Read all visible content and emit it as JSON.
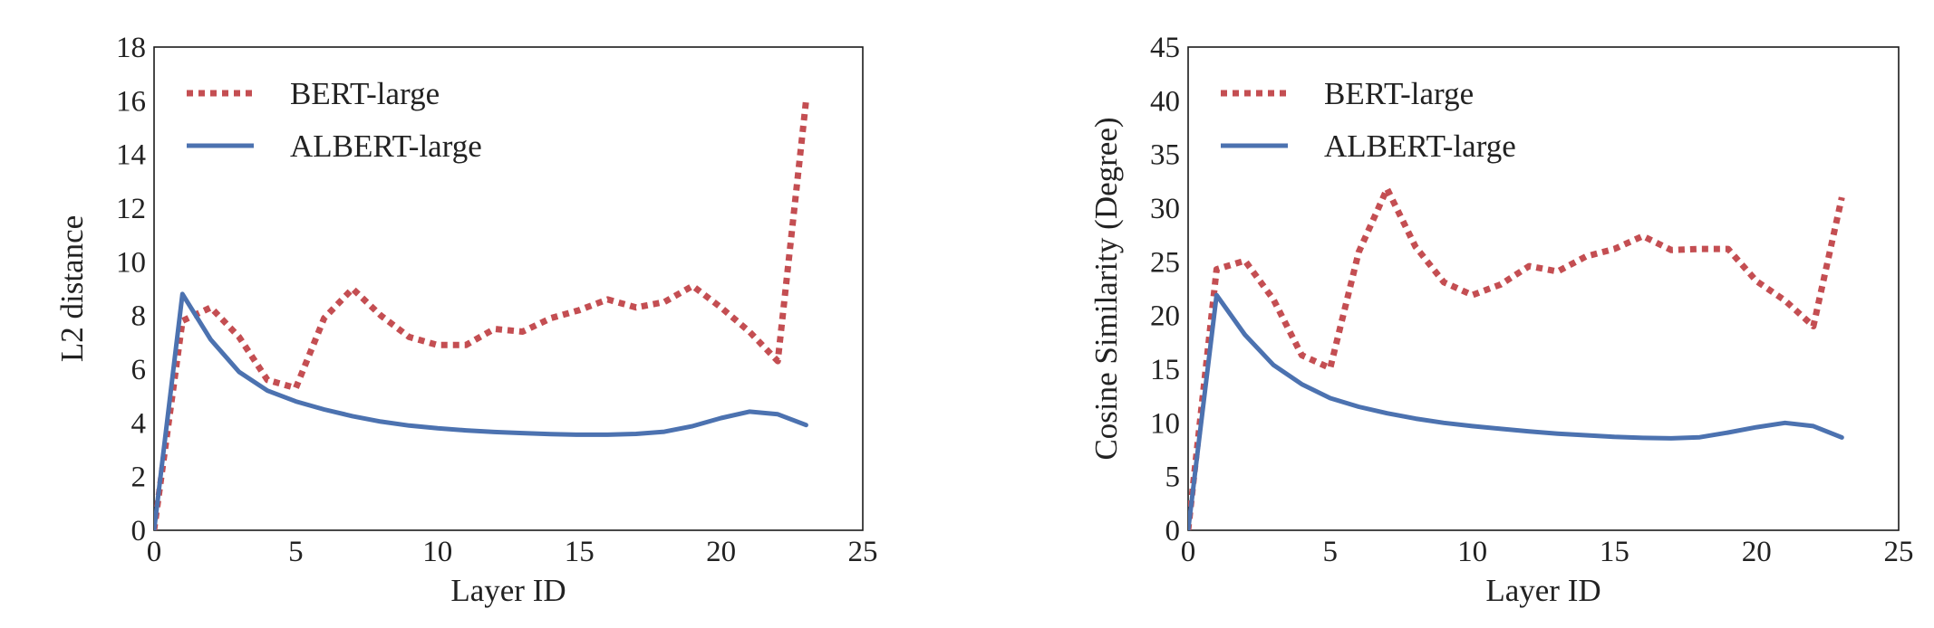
{
  "chart_data": [
    {
      "type": "line",
      "title": "",
      "xlabel": "Layer ID",
      "ylabel": "L2 distance",
      "xlim": [
        0,
        25
      ],
      "ylim": [
        0,
        18
      ],
      "xticks": [
        0,
        5,
        10,
        15,
        20,
        25
      ],
      "yticks": [
        0,
        2,
        4,
        6,
        8,
        10,
        12,
        14,
        16,
        18
      ],
      "grid": false,
      "legend_position": "top-left",
      "x": [
        0,
        1,
        2,
        3,
        4,
        5,
        6,
        7,
        8,
        9,
        10,
        11,
        12,
        13,
        14,
        15,
        16,
        17,
        18,
        19,
        20,
        21,
        22,
        23
      ],
      "series": [
        {
          "name": "BERT-large",
          "style": "dotted",
          "color": "#C44E52",
          "values": [
            0,
            7.8,
            8.3,
            7.2,
            5.6,
            5.3,
            7.9,
            9.0,
            8.0,
            7.2,
            6.9,
            6.9,
            7.5,
            7.4,
            7.9,
            8.2,
            8.6,
            8.3,
            8.5,
            9.1,
            8.3,
            7.4,
            6.3,
            16.0
          ]
        },
        {
          "name": "ALBERT-large",
          "style": "solid",
          "color": "#4C72B0",
          "values": [
            0,
            8.8,
            7.1,
            5.9,
            5.2,
            4.8,
            4.5,
            4.25,
            4.05,
            3.9,
            3.8,
            3.72,
            3.66,
            3.62,
            3.58,
            3.56,
            3.56,
            3.59,
            3.67,
            3.88,
            4.18,
            4.42,
            4.32,
            3.92
          ]
        }
      ]
    },
    {
      "type": "line",
      "title": "",
      "xlabel": "Layer ID",
      "ylabel": "Cosine Similarity (Degree)",
      "xlim": [
        0,
        25
      ],
      "ylim": [
        0,
        45
      ],
      "xticks": [
        0,
        5,
        10,
        15,
        20,
        25
      ],
      "yticks": [
        0,
        5,
        10,
        15,
        20,
        25,
        30,
        35,
        40,
        45
      ],
      "grid": false,
      "legend_position": "top-left",
      "x": [
        0,
        1,
        2,
        3,
        4,
        5,
        6,
        7,
        8,
        9,
        10,
        11,
        12,
        13,
        14,
        15,
        16,
        17,
        18,
        19,
        20,
        21,
        22,
        23
      ],
      "series": [
        {
          "name": "BERT-large",
          "style": "dotted",
          "color": "#C44E52",
          "values": [
            0,
            24.3,
            25.1,
            21.5,
            16.3,
            15.1,
            25.9,
            31.8,
            26.4,
            23.1,
            21.9,
            22.9,
            24.6,
            24.1,
            25.5,
            26.2,
            27.4,
            26.1,
            26.2,
            26.2,
            23.2,
            21.4,
            19.0,
            31.0
          ]
        },
        {
          "name": "ALBERT-large",
          "style": "solid",
          "color": "#4C72B0",
          "values": [
            0,
            21.9,
            18.2,
            15.4,
            13.6,
            12.3,
            11.5,
            10.9,
            10.4,
            10.0,
            9.7,
            9.45,
            9.2,
            9.0,
            8.85,
            8.7,
            8.6,
            8.56,
            8.66,
            9.1,
            9.6,
            10.0,
            9.7,
            8.65
          ]
        }
      ]
    }
  ]
}
